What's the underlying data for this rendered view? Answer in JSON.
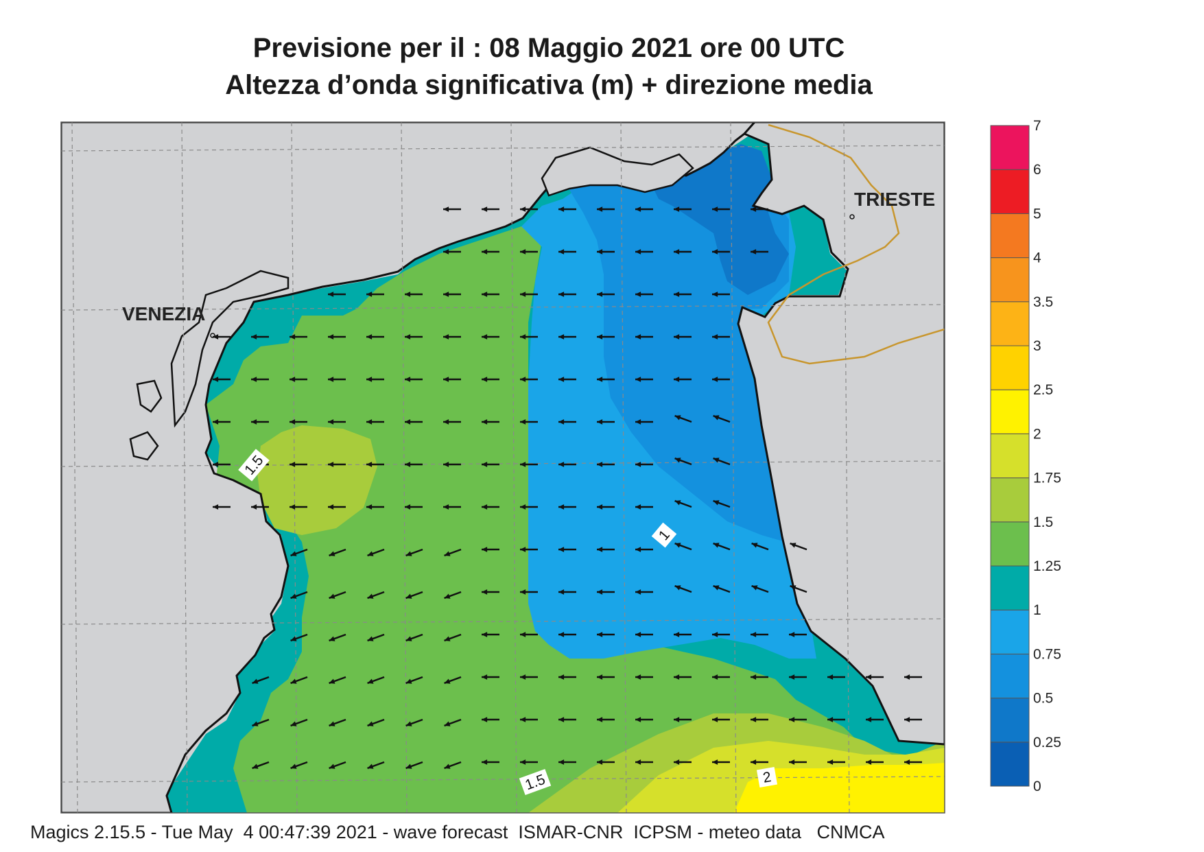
{
  "title_line1": "Previsione per il  :  08   Maggio  2021   ore 00 UTC",
  "title_line2": "Altezza d’onda significativa (m) + direzione media",
  "footer": "Magics 2.15.5 - Tue May  4 00:47:39 2021 - wave forecast  ISMAR-CNR  ICPSM - meteo data   CNMCA",
  "cities": [
    "VENEZIA",
    "TRIESTE"
  ],
  "contour_labels": [
    "1.5",
    "1",
    "1.5",
    "2"
  ],
  "colorbar": {
    "ticks": [
      "0",
      "0.25",
      "0.5",
      "0.75",
      "1",
      "1.25",
      "1.5",
      "1.75",
      "2",
      "2.5",
      "3",
      "3.5",
      "4",
      "5",
      "6",
      "7"
    ],
    "colors": [
      "#0a5fb4",
      "#0f78c9",
      "#1491de",
      "#1aa5e8",
      "#00aba8",
      "#6cbf4d",
      "#a8cc3c",
      "#d6e02b",
      "#fff200",
      "#ffd200",
      "#fdb316",
      "#f7941d",
      "#f47920",
      "#ed1c24",
      "#ec145d"
    ]
  },
  "colors": {
    "land": "#d1d2d4",
    "coast": "#111111",
    "border": "#c8962d",
    "grid": "#8a8a8a"
  },
  "wave_direction": "westward (toward Venezia), turning south-westward in the south-west",
  "chart_data": {
    "type": "heatmap",
    "title": "Altezza d’onda significativa (m) + direzione media",
    "units": "m",
    "levels": [
      0,
      0.25,
      0.5,
      0.75,
      1,
      1.25,
      1.5,
      1.75,
      2,
      2.5,
      3,
      3.5,
      4,
      5,
      6,
      7
    ],
    "observed_range": [
      0.25,
      2.25
    ]
  }
}
